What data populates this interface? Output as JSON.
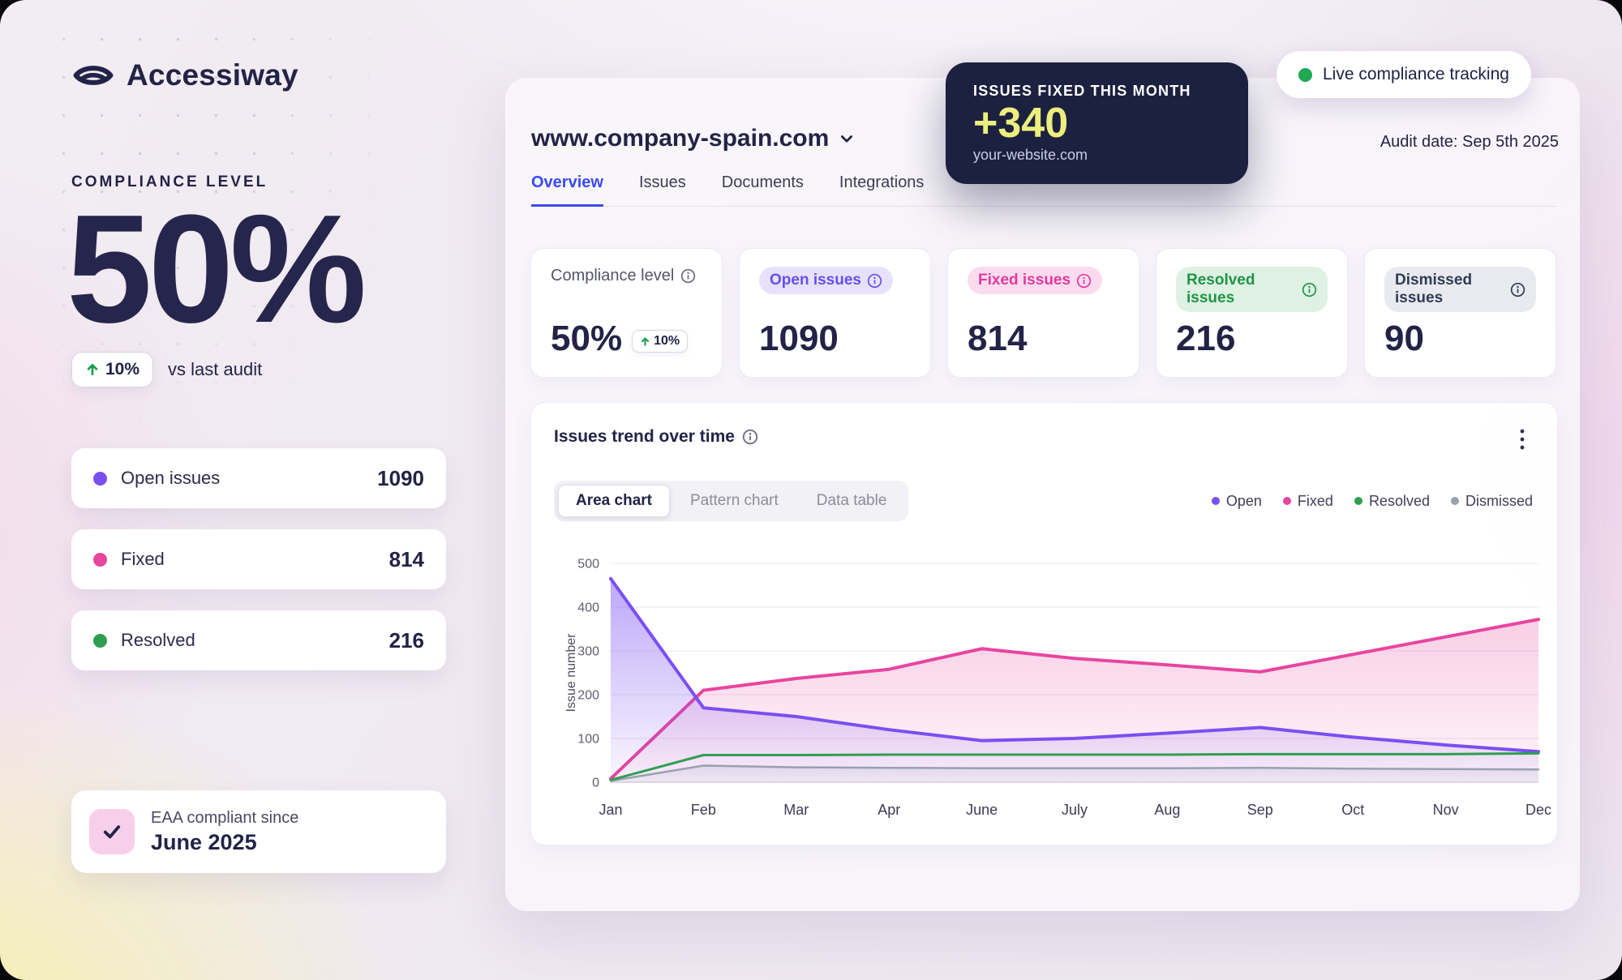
{
  "brand": {
    "name": "Accessiway"
  },
  "sidebar": {
    "compliance_label": "COMPLIANCE LEVEL",
    "compliance_value": "50%",
    "delta": {
      "value": "10%",
      "caption": "vs last audit"
    },
    "stats": [
      {
        "label": "Open issues",
        "value": "1090",
        "color": "#7a4ff2"
      },
      {
        "label": "Fixed",
        "value": "814",
        "color": "#e8459f"
      },
      {
        "label": "Resolved",
        "value": "216",
        "color": "#2f9e50"
      }
    ],
    "eaa": {
      "caption": "EAA compliant since",
      "date": "June 2025"
    }
  },
  "header": {
    "site": "www.company-spain.com",
    "tabs": [
      {
        "label": "Overview"
      },
      {
        "label": "Issues"
      },
      {
        "label": "Documents"
      },
      {
        "label": "Integrations"
      }
    ],
    "active_tab": "Overview",
    "audit_date": "Audit date: Sep 5th 2025"
  },
  "overlays": {
    "fixed_month_card": {
      "title": "ISSUES FIXED THIS MONTH",
      "value": "+340",
      "subtitle": "your-website.com",
      "value_color": "#ecef7d",
      "bg_color": "#1d2140"
    },
    "live_badge": {
      "label": "Live compliance tracking",
      "dot_color": "#21a853"
    }
  },
  "stat_cards": [
    {
      "label": "Compliance level",
      "value": "50%",
      "delta": "10%"
    },
    {
      "label": "Open issues",
      "value": "1090"
    },
    {
      "label": "Fixed issues",
      "value": "814"
    },
    {
      "label": "Resolved issues",
      "value": "216"
    },
    {
      "label": "Dismissed issues",
      "value": "90"
    }
  ],
  "trend_card": {
    "title": "Issues trend over time",
    "view_tabs": [
      {
        "label": "Area chart"
      },
      {
        "label": "Pattern chart"
      },
      {
        "label": "Data table"
      }
    ],
    "active_view": "Area chart",
    "legend": [
      {
        "label": "Open",
        "color": "#7a4ff2"
      },
      {
        "label": "Fixed",
        "color": "#e8459f"
      },
      {
        "label": "Resolved",
        "color": "#2f9e50"
      },
      {
        "label": "Dismissed",
        "color": "#97a1ad"
      }
    ]
  },
  "chart_data": {
    "type": "area",
    "title": "Issues trend over time",
    "ylabel": "Issue number",
    "xlabel": "",
    "ylim": [
      0,
      500
    ],
    "yticks": [
      0,
      100,
      200,
      300,
      400,
      500
    ],
    "grid": true,
    "legend_position": "top-right",
    "x": [
      "Jan",
      "Feb",
      "Mar",
      "Apr",
      "June",
      "July",
      "Aug",
      "Sep",
      "Oct",
      "Nov",
      "Dec"
    ],
    "draw_order": [
      "Fixed",
      "Open",
      "Dismissed",
      "Resolved"
    ],
    "series": [
      {
        "name": "Open",
        "color": "#7a4ff2",
        "line_width": 4,
        "fill": {
          "top": 0.5,
          "bottom": 0.04
        },
        "values": [
          465,
          170,
          150,
          120,
          95,
          100,
          112,
          125,
          103,
          85,
          70
        ]
      },
      {
        "name": "Fixed",
        "color": "#e8459f",
        "line_width": 4,
        "fill": {
          "top": 0.26,
          "bottom": 0.05
        },
        "values": [
          8,
          210,
          237,
          258,
          305,
          283,
          268,
          252,
          292,
          332,
          372
        ]
      },
      {
        "name": "Resolved",
        "color": "#2f9e50",
        "line_width": 3,
        "fill": null,
        "values": [
          5,
          62,
          62,
          63,
          63,
          63,
          63,
          64,
          64,
          64,
          66
        ]
      },
      {
        "name": "Dismissed",
        "color": "#97a1ad",
        "line_width": 2.5,
        "fill": {
          "top": 0.2,
          "bottom": 0.1
        },
        "values": [
          3,
          38,
          34,
          33,
          32,
          32,
          32,
          33,
          31,
          30,
          29
        ]
      }
    ]
  }
}
